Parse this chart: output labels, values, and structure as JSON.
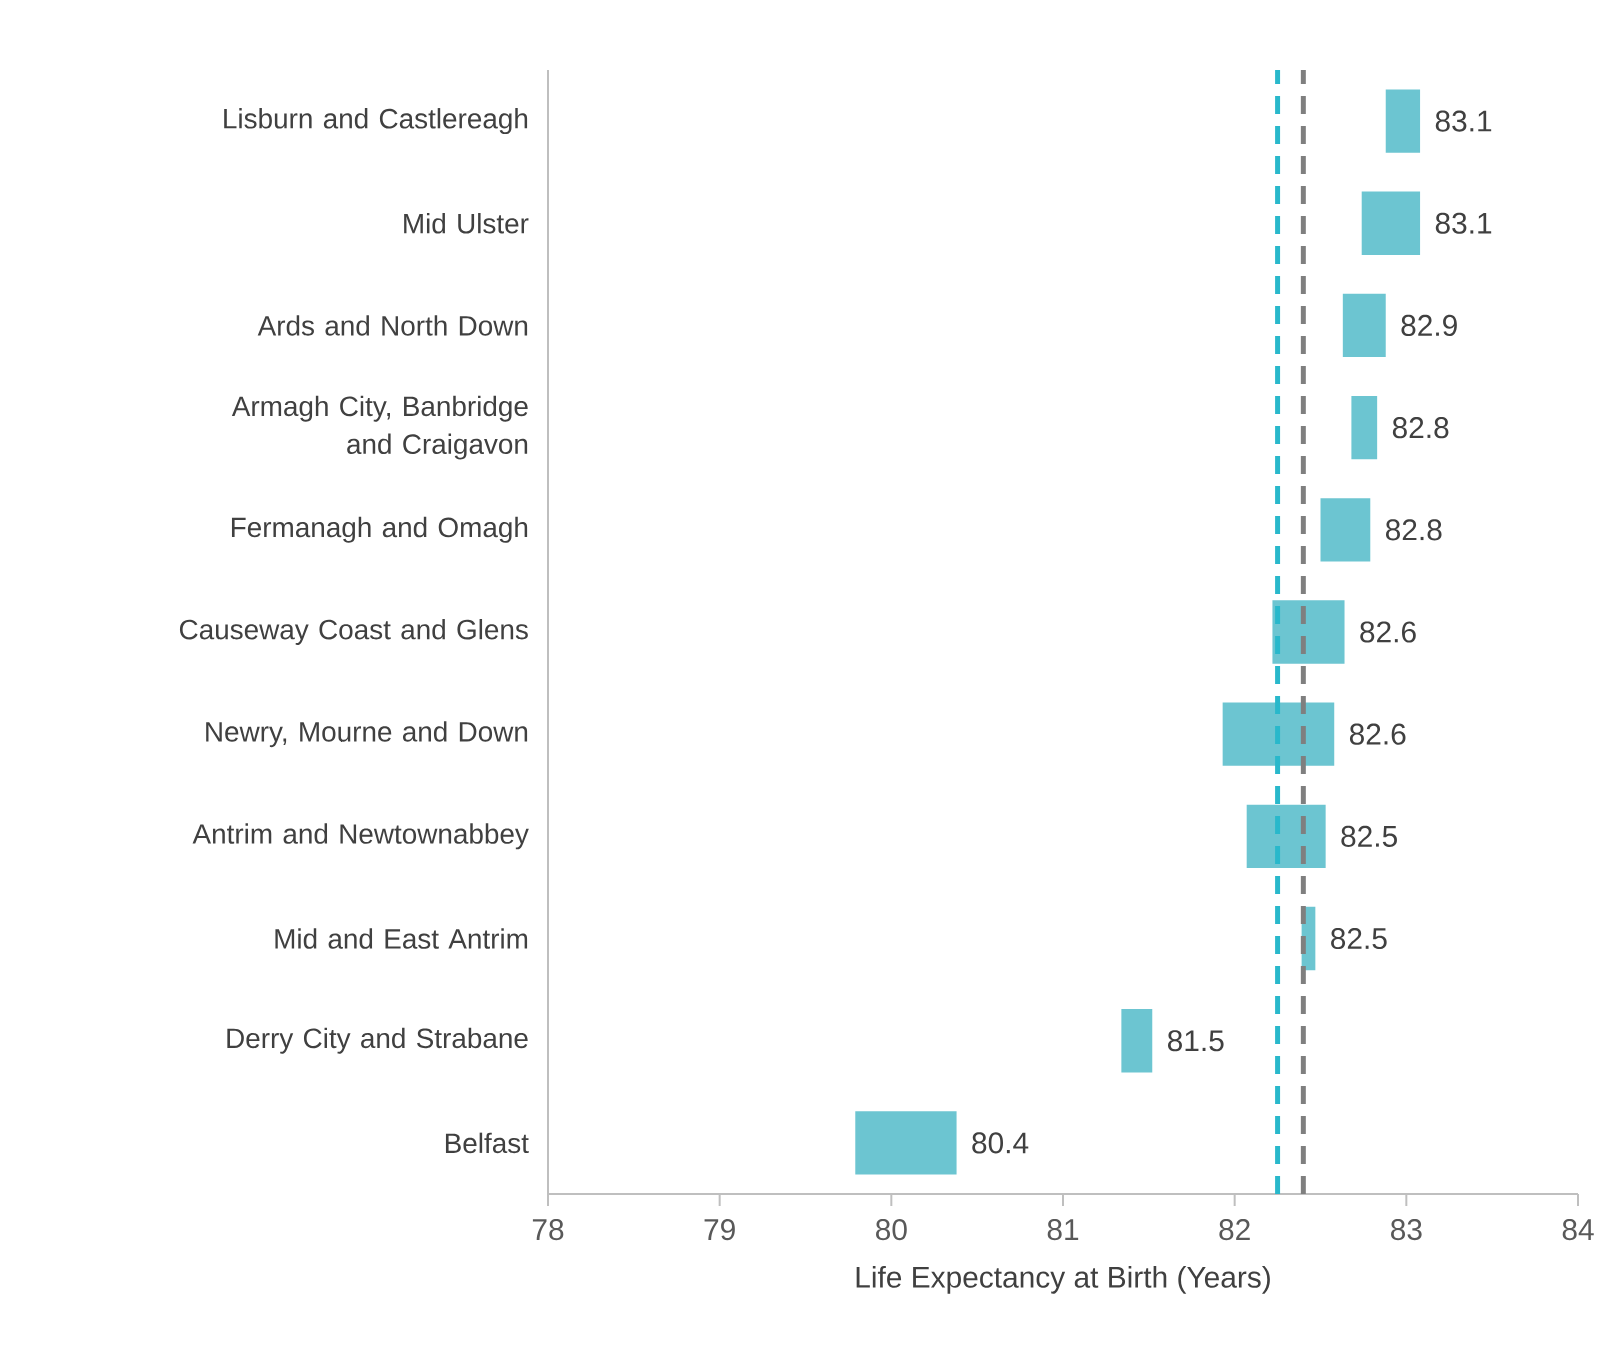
{
  "chart_data": {
    "type": "bar",
    "orientation": "horizontal",
    "xlabel": "Life Expectancy at Birth (Years)",
    "categories": [
      "Lisburn and Castlereagh",
      "Mid Ulster",
      "Ards and North Down",
      "Armagh City, Banbridge and Craigavon",
      "Fermanagh and Omagh",
      "Causeway Coast and Glens",
      "Newry, Mourne and Down",
      "Antrim and Newtownabbey",
      "Mid and East Antrim",
      "Derry City and Strabane",
      "Belfast"
    ],
    "base": [
      82.88,
      82.74,
      82.63,
      82.68,
      82.5,
      82.22,
      81.93,
      82.07,
      82.39,
      81.34,
      79.79
    ],
    "values": [
      0.2,
      0.34,
      0.25,
      0.15,
      0.29,
      0.42,
      0.65,
      0.46,
      0.08,
      0.18,
      0.59
    ],
    "value_labels": [
      "83.1",
      "83.1",
      "82.9",
      "82.8",
      "82.8",
      "82.6",
      "82.6",
      "82.5",
      "82.5",
      "81.5",
      "80.4"
    ],
    "color": "#6cc5d1",
    "xlim": [
      78,
      84
    ],
    "xticks": [
      78,
      79,
      80,
      81,
      82,
      83,
      84
    ],
    "ref_lines": [
      {
        "axis": "x",
        "value": 82.25,
        "color": "#29b8cb",
        "line_style": "dashed"
      },
      {
        "axis": "x",
        "value": 82.4,
        "color": "#7f7f7f",
        "line_style": "dashed"
      }
    ]
  }
}
